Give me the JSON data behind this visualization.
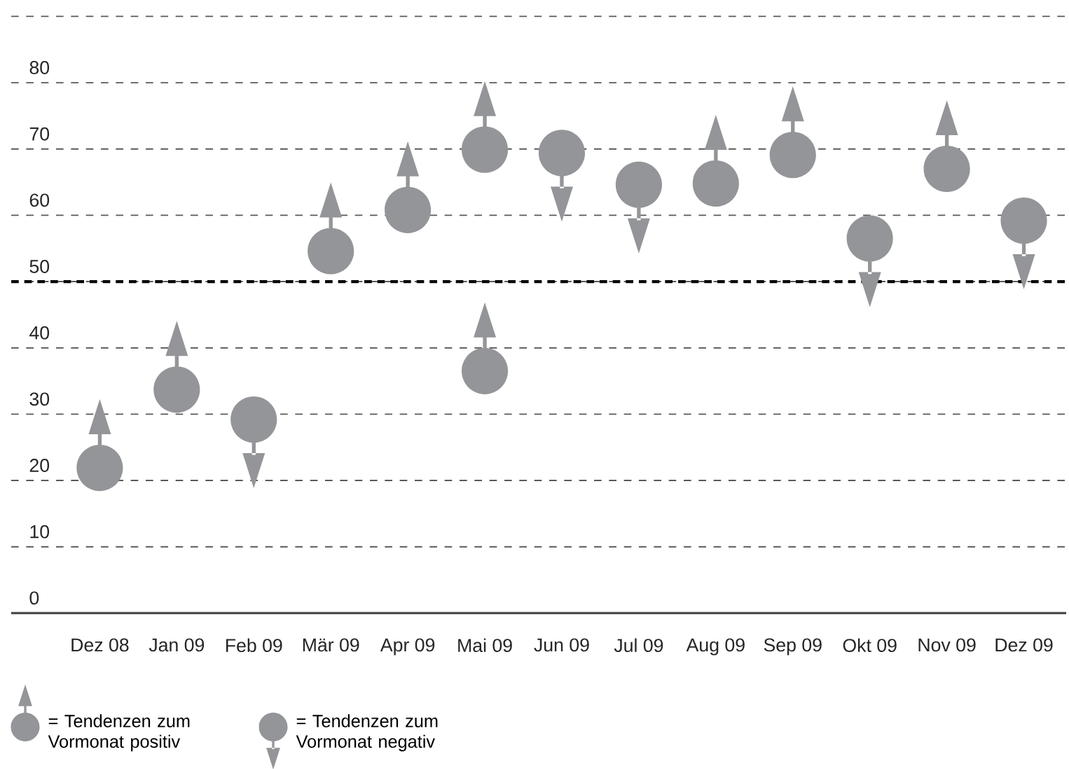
{
  "chart_data": {
    "type": "scatter",
    "categories": [
      "Dez 08",
      "Jan 09",
      "Feb 09",
      "Mär 09",
      "Apr 09",
      "Mai 09",
      "Jun 09",
      "Jul 09",
      "Aug 09",
      "Sep 09",
      "Okt 09",
      "Nov 09",
      "Dez 09"
    ],
    "series": [
      {
        "name": "= Tendenzen zum Vormonat positiv",
        "color": "#939598",
        "x": [
          "Dez 08",
          "Jan 09",
          "Mär 09",
          "Apr 09",
          "Mai 09",
          "Mai 09",
          "Aug 09",
          "Sep 09",
          "Nov 09"
        ],
        "values": [
          21.9,
          33.7,
          54.6,
          60.8,
          69.9,
          36.5,
          64.8,
          69.1,
          67.0
        ]
      },
      {
        "name": "= Tendenzen zum Vormonat negativ",
        "color": "#939598",
        "x": [
          "Feb 09",
          "Jun 09",
          "Jul 09",
          "Okt 09",
          "Dez 09"
        ],
        "values": [
          29.2,
          69.4,
          64.6,
          56.5,
          59.2
        ]
      }
    ],
    "ylim": [
      0,
      90
    ],
    "yticks": [
      0,
      10,
      20,
      30,
      40,
      50,
      60,
      70,
      80,
      {
        "value": 90,
        "label": null
      }
    ],
    "grid": "y",
    "ref_lines": [
      {
        "axis": "y",
        "value": 50,
        "label": null,
        "color": "#000000",
        "line_style": "dashed"
      }
    ],
    "legend": "bottom left",
    "marker": "circle"
  }
}
